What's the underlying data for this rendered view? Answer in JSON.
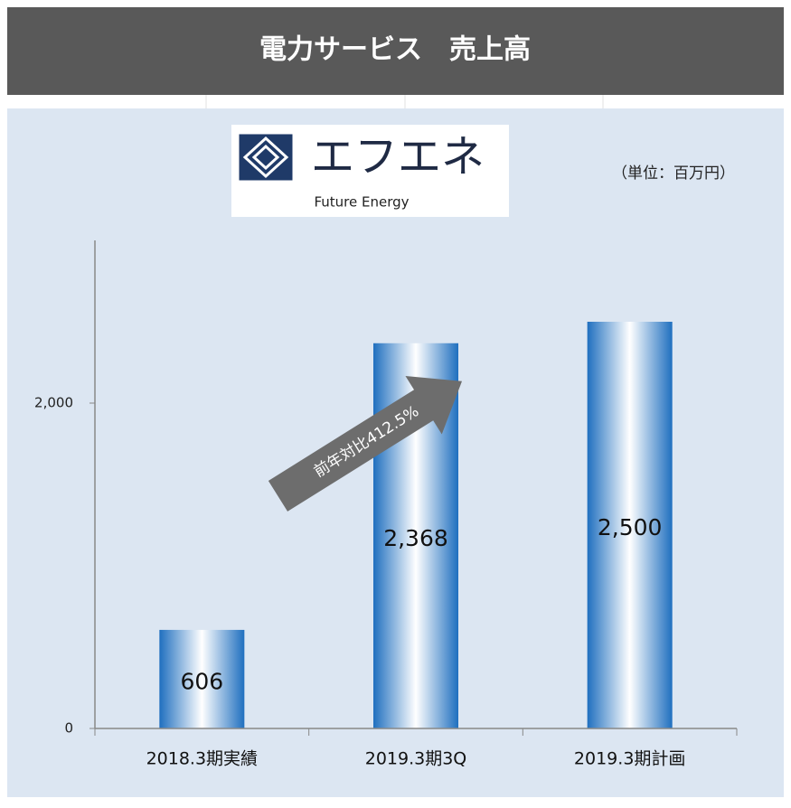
{
  "chart_data": {
    "type": "bar",
    "title": "電力サービス　売上高",
    "unit_label": "（単位：百万円）",
    "logo_text": "エフエネ",
    "logo_subtext": "Future Energy",
    "annotation": "前年対比412.5%",
    "categories": [
      "2018.3期実績",
      "2019.3期3Q",
      "2019.3期計画"
    ],
    "values": [
      606,
      2368,
      2500
    ],
    "value_labels": [
      "606",
      "2,368",
      "2,500"
    ],
    "color": "#1f6fbf",
    "ylim": [
      0,
      3000
    ],
    "yticks": [
      0,
      {
        "value": 2000,
        "label": "2,000"
      }
    ],
    "grid": false
  }
}
